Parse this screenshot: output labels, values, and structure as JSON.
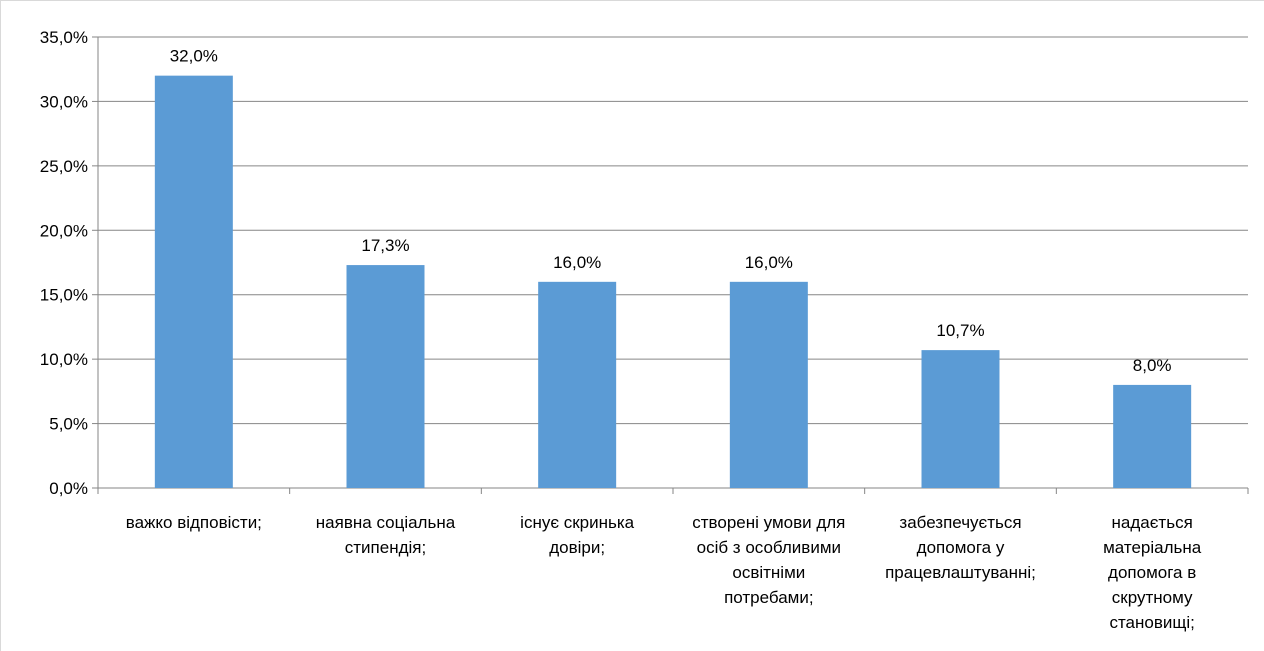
{
  "chart_data": {
    "type": "bar",
    "title": "",
    "xlabel": "",
    "ylabel": "",
    "categories": [
      [
        "важко відповісти;"
      ],
      [
        "наявна соціальна",
        "стипендія;"
      ],
      [
        "існує скринька",
        "довіри;"
      ],
      [
        "створені умови для",
        "осіб з особливими",
        "освітніми",
        "потребами;"
      ],
      [
        "забезпечується",
        "допомога у",
        "працевлаштуванні;"
      ],
      [
        "надається",
        "матеріальна",
        "допомога в",
        "скрутному",
        "становищі;"
      ]
    ],
    "values": [
      32.0,
      17.3,
      16.0,
      16.0,
      10.7,
      8.0
    ],
    "data_labels": [
      "32,0%",
      "17,3%",
      "16,0%",
      "16,0%",
      "10,7%",
      "8,0%"
    ],
    "ylim": [
      0,
      35
    ],
    "y_ticks": [
      0,
      5,
      10,
      15,
      20,
      25,
      30,
      35
    ],
    "y_tick_labels": [
      "0,0%",
      "5,0%",
      "10,0%",
      "15,0%",
      "20,0%",
      "25,0%",
      "30,0%",
      "35,0%"
    ],
    "grid": true,
    "legend": "none",
    "bar_color": "#5b9bd5",
    "grid_color": "#868686"
  }
}
